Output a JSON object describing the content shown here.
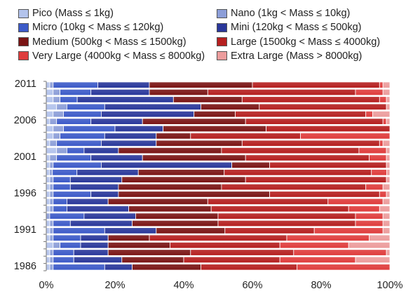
{
  "chart_data": {
    "type": "bar",
    "orientation": "horizontal",
    "stacking": "percent",
    "title": "",
    "xlabel": "",
    "ylabel": "",
    "xlim": [
      0,
      100
    ],
    "x_tick_labels": [
      "0%",
      "20%",
      "40%",
      "60%",
      "80%",
      "100%"
    ],
    "y_tick_labels": [
      "2011",
      "2006",
      "2001",
      "1996",
      "1991",
      "1986"
    ],
    "categories": [
      "1986",
      "1987",
      "1988",
      "1989",
      "1990",
      "1991",
      "1992",
      "1993",
      "1994",
      "1995",
      "1996",
      "1997",
      "1998",
      "1999",
      "2000",
      "2001",
      "2002",
      "2003",
      "2004",
      "2005",
      "2006",
      "2007",
      "2008",
      "2009",
      "2010",
      "2011"
    ],
    "legend_position": "top",
    "series": [
      {
        "name": "Pico (Mass ≤ 1kg)",
        "color": "#b3c3ec",
        "values": [
          1,
          1,
          1,
          2,
          1,
          1,
          1,
          0,
          1,
          1,
          1,
          1,
          1,
          1,
          1,
          1,
          3,
          1,
          2,
          2,
          1,
          2,
          3,
          2,
          2,
          1
        ]
      },
      {
        "name": "Nano (1kg < Mass ≤ 10kg)",
        "color": "#8c9ed8",
        "values": [
          1,
          1,
          1,
          2,
          1,
          1,
          1,
          1,
          1,
          1,
          1,
          1,
          1,
          1,
          1,
          2,
          3,
          2,
          2,
          3,
          2,
          3,
          3,
          2,
          2,
          1
        ]
      },
      {
        "name": "Micro (10kg < Mass ≤ 120kg)",
        "color": "#3c5ac8",
        "values": [
          15,
          6,
          6,
          6,
          8,
          15,
          5,
          10,
          4,
          4,
          11,
          5,
          5,
          8,
          14,
          10,
          5,
          13,
          13,
          15,
          10,
          11,
          11,
          5,
          9,
          13
        ]
      },
      {
        "name": "Mini (120kg < Mass ≤ 500kg)",
        "color": "#29379a",
        "values": [
          8,
          14,
          10,
          8,
          8,
          15,
          18,
          15,
          18,
          12,
          8,
          14,
          15,
          20,
          38,
          15,
          10,
          16,
          15,
          14,
          15,
          27,
          28,
          28,
          17,
          15
        ]
      },
      {
        "name": "Medium (500kg < Mass ≤ 1500kg)",
        "color": "#7a1414",
        "values": [
          20,
          18,
          24,
          18,
          12,
          20,
          25,
          24,
          24,
          29,
          44,
          30,
          36,
          28,
          11,
          30,
          30,
          25,
          10,
          30,
          30,
          12,
          17,
          20,
          17,
          30
        ]
      },
      {
        "name": "Large (1500kg < Mass ≤ 4000kg)",
        "color": "#b51f1f",
        "values": [
          28,
          28,
          30,
          32,
          40,
          26,
          40,
          40,
          40,
          35,
          32,
          42,
          41,
          48,
          34,
          36,
          40,
          40,
          32,
          36,
          40,
          38,
          37,
          40,
          43,
          37
        ]
      },
      {
        "name": "Very Large (4000kg < Mass ≤ 8000kg)",
        "color": "#df3c3c",
        "values": [
          27,
          22,
          27,
          20,
          24,
          20,
          8,
          8,
          9,
          16,
          2,
          5,
          0,
          5,
          0,
          5,
          8,
          1,
          26,
          0,
          1,
          2,
          0,
          2,
          8,
          1
        ]
      },
      {
        "name": "Extra Large (Mass > 8000kg)",
        "color": "#ec9c9c",
        "values": [
          0,
          10,
          1,
          12,
          6,
          2,
          2,
          2,
          3,
          2,
          1,
          2,
          1,
          1,
          1,
          1,
          1,
          2,
          0,
          0,
          1,
          5,
          1,
          1,
          2,
          2
        ]
      }
    ]
  }
}
